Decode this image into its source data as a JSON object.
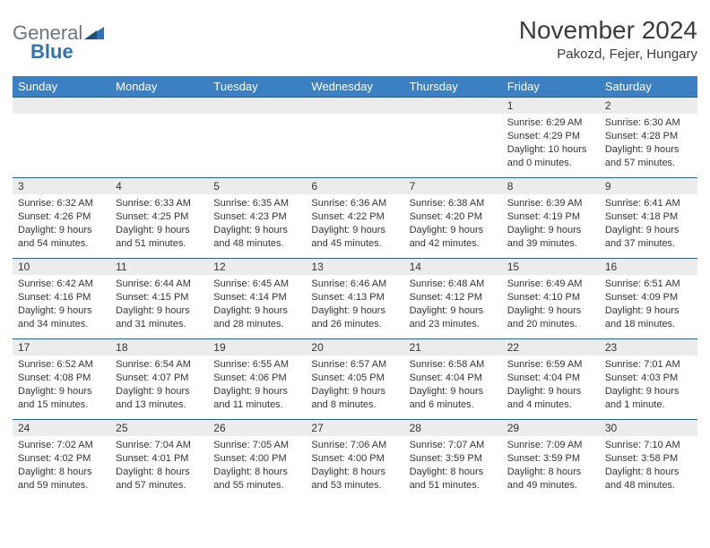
{
  "brand": {
    "part1": "General",
    "part2": "Blue"
  },
  "title": "November 2024",
  "location": "Pakozd, Fejer, Hungary",
  "colors": {
    "header_bg": "#3a80c3",
    "header_text": "#ffffff",
    "row_divider": "#2e5f94",
    "daynum_bg": "#ececec",
    "text": "#343434",
    "logo_gray": "#6b7682",
    "logo_blue": "#2e74b5",
    "page_bg": "#ffffff"
  },
  "typography": {
    "title_fontsize": 28,
    "location_fontsize": 15,
    "dayhead_fontsize": 13,
    "daynum_fontsize": 12,
    "body_fontsize": 11
  },
  "day_headers": [
    "Sunday",
    "Monday",
    "Tuesday",
    "Wednesday",
    "Thursday",
    "Friday",
    "Saturday"
  ],
  "weeks": [
    [
      {
        "n": "",
        "sr": "",
        "ss": "",
        "dl": ""
      },
      {
        "n": "",
        "sr": "",
        "ss": "",
        "dl": ""
      },
      {
        "n": "",
        "sr": "",
        "ss": "",
        "dl": ""
      },
      {
        "n": "",
        "sr": "",
        "ss": "",
        "dl": ""
      },
      {
        "n": "",
        "sr": "",
        "ss": "",
        "dl": ""
      },
      {
        "n": "1",
        "sr": "Sunrise: 6:29 AM",
        "ss": "Sunset: 4:29 PM",
        "dl": "Daylight: 10 hours and 0 minutes."
      },
      {
        "n": "2",
        "sr": "Sunrise: 6:30 AM",
        "ss": "Sunset: 4:28 PM",
        "dl": "Daylight: 9 hours and 57 minutes."
      }
    ],
    [
      {
        "n": "3",
        "sr": "Sunrise: 6:32 AM",
        "ss": "Sunset: 4:26 PM",
        "dl": "Daylight: 9 hours and 54 minutes."
      },
      {
        "n": "4",
        "sr": "Sunrise: 6:33 AM",
        "ss": "Sunset: 4:25 PM",
        "dl": "Daylight: 9 hours and 51 minutes."
      },
      {
        "n": "5",
        "sr": "Sunrise: 6:35 AM",
        "ss": "Sunset: 4:23 PM",
        "dl": "Daylight: 9 hours and 48 minutes."
      },
      {
        "n": "6",
        "sr": "Sunrise: 6:36 AM",
        "ss": "Sunset: 4:22 PM",
        "dl": "Daylight: 9 hours and 45 minutes."
      },
      {
        "n": "7",
        "sr": "Sunrise: 6:38 AM",
        "ss": "Sunset: 4:20 PM",
        "dl": "Daylight: 9 hours and 42 minutes."
      },
      {
        "n": "8",
        "sr": "Sunrise: 6:39 AM",
        "ss": "Sunset: 4:19 PM",
        "dl": "Daylight: 9 hours and 39 minutes."
      },
      {
        "n": "9",
        "sr": "Sunrise: 6:41 AM",
        "ss": "Sunset: 4:18 PM",
        "dl": "Daylight: 9 hours and 37 minutes."
      }
    ],
    [
      {
        "n": "10",
        "sr": "Sunrise: 6:42 AM",
        "ss": "Sunset: 4:16 PM",
        "dl": "Daylight: 9 hours and 34 minutes."
      },
      {
        "n": "11",
        "sr": "Sunrise: 6:44 AM",
        "ss": "Sunset: 4:15 PM",
        "dl": "Daylight: 9 hours and 31 minutes."
      },
      {
        "n": "12",
        "sr": "Sunrise: 6:45 AM",
        "ss": "Sunset: 4:14 PM",
        "dl": "Daylight: 9 hours and 28 minutes."
      },
      {
        "n": "13",
        "sr": "Sunrise: 6:46 AM",
        "ss": "Sunset: 4:13 PM",
        "dl": "Daylight: 9 hours and 26 minutes."
      },
      {
        "n": "14",
        "sr": "Sunrise: 6:48 AM",
        "ss": "Sunset: 4:12 PM",
        "dl": "Daylight: 9 hours and 23 minutes."
      },
      {
        "n": "15",
        "sr": "Sunrise: 6:49 AM",
        "ss": "Sunset: 4:10 PM",
        "dl": "Daylight: 9 hours and 20 minutes."
      },
      {
        "n": "16",
        "sr": "Sunrise: 6:51 AM",
        "ss": "Sunset: 4:09 PM",
        "dl": "Daylight: 9 hours and 18 minutes."
      }
    ],
    [
      {
        "n": "17",
        "sr": "Sunrise: 6:52 AM",
        "ss": "Sunset: 4:08 PM",
        "dl": "Daylight: 9 hours and 15 minutes."
      },
      {
        "n": "18",
        "sr": "Sunrise: 6:54 AM",
        "ss": "Sunset: 4:07 PM",
        "dl": "Daylight: 9 hours and 13 minutes."
      },
      {
        "n": "19",
        "sr": "Sunrise: 6:55 AM",
        "ss": "Sunset: 4:06 PM",
        "dl": "Daylight: 9 hours and 11 minutes."
      },
      {
        "n": "20",
        "sr": "Sunrise: 6:57 AM",
        "ss": "Sunset: 4:05 PM",
        "dl": "Daylight: 9 hours and 8 minutes."
      },
      {
        "n": "21",
        "sr": "Sunrise: 6:58 AM",
        "ss": "Sunset: 4:04 PM",
        "dl": "Daylight: 9 hours and 6 minutes."
      },
      {
        "n": "22",
        "sr": "Sunrise: 6:59 AM",
        "ss": "Sunset: 4:04 PM",
        "dl": "Daylight: 9 hours and 4 minutes."
      },
      {
        "n": "23",
        "sr": "Sunrise: 7:01 AM",
        "ss": "Sunset: 4:03 PM",
        "dl": "Daylight: 9 hours and 1 minute."
      }
    ],
    [
      {
        "n": "24",
        "sr": "Sunrise: 7:02 AM",
        "ss": "Sunset: 4:02 PM",
        "dl": "Daylight: 8 hours and 59 minutes."
      },
      {
        "n": "25",
        "sr": "Sunrise: 7:04 AM",
        "ss": "Sunset: 4:01 PM",
        "dl": "Daylight: 8 hours and 57 minutes."
      },
      {
        "n": "26",
        "sr": "Sunrise: 7:05 AM",
        "ss": "Sunset: 4:00 PM",
        "dl": "Daylight: 8 hours and 55 minutes."
      },
      {
        "n": "27",
        "sr": "Sunrise: 7:06 AM",
        "ss": "Sunset: 4:00 PM",
        "dl": "Daylight: 8 hours and 53 minutes."
      },
      {
        "n": "28",
        "sr": "Sunrise: 7:07 AM",
        "ss": "Sunset: 3:59 PM",
        "dl": "Daylight: 8 hours and 51 minutes."
      },
      {
        "n": "29",
        "sr": "Sunrise: 7:09 AM",
        "ss": "Sunset: 3:59 PM",
        "dl": "Daylight: 8 hours and 49 minutes."
      },
      {
        "n": "30",
        "sr": "Sunrise: 7:10 AM",
        "ss": "Sunset: 3:58 PM",
        "dl": "Daylight: 8 hours and 48 minutes."
      }
    ]
  ]
}
